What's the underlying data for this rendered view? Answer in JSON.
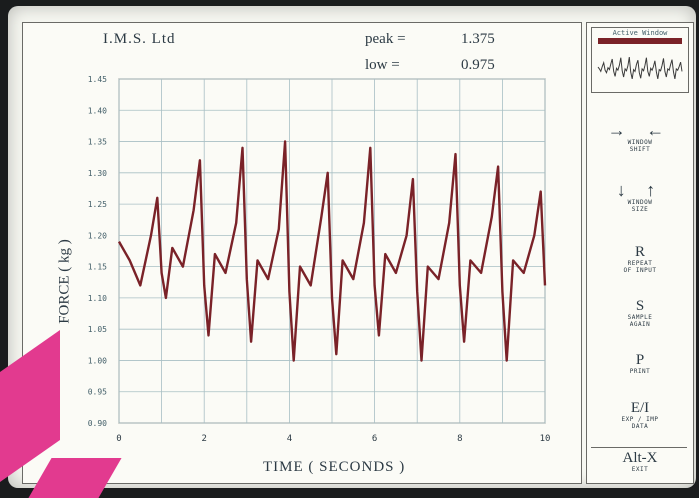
{
  "header": {
    "company": "I.M.S. Ltd",
    "peak_label": "peak =",
    "peak_value": "1.375",
    "low_label": "low =",
    "low_value": "0.975"
  },
  "axes": {
    "ylabel": "FORCE ( kg )",
    "xlabel": "TIME ( SECONDS )"
  },
  "chart_data": {
    "type": "line",
    "xlabel": "TIME ( SECONDS )",
    "ylabel": "FORCE ( kg )",
    "xlim": [
      0,
      10
    ],
    "ylim": [
      0.9,
      1.45
    ],
    "xticks": [
      "0",
      "2",
      "4",
      "6",
      "8",
      "10"
    ],
    "yticks": [
      "1.45",
      "1.40",
      "1.35",
      "1.30",
      "1.25",
      "1.20",
      "1.15",
      "1.10",
      "1.05",
      "1.00",
      "0.95",
      "0.90"
    ],
    "grid": true,
    "series": [
      {
        "color": "#7a2228",
        "x": [
          0,
          0.25,
          0.5,
          0.75,
          0.9,
          1.0,
          1.1,
          1.25,
          1.5,
          1.75,
          1.9,
          2.0,
          2.1,
          2.25,
          2.5,
          2.75,
          2.9,
          3.0,
          3.1,
          3.25,
          3.5,
          3.75,
          3.9,
          4.0,
          4.1,
          4.25,
          4.5,
          4.75,
          4.9,
          5.0,
          5.1,
          5.25,
          5.5,
          5.75,
          5.9,
          6.0,
          6.1,
          6.25,
          6.5,
          6.75,
          6.9,
          7.0,
          7.1,
          7.25,
          7.5,
          7.75,
          7.9,
          8.0,
          8.1,
          8.25,
          8.5,
          8.75,
          8.9,
          9.0,
          9.1,
          9.25,
          9.5,
          9.75,
          9.9,
          10.0
        ],
        "y": [
          1.19,
          1.16,
          1.12,
          1.2,
          1.26,
          1.14,
          1.1,
          1.18,
          1.15,
          1.24,
          1.32,
          1.12,
          1.04,
          1.17,
          1.14,
          1.22,
          1.34,
          1.13,
          1.03,
          1.16,
          1.13,
          1.21,
          1.35,
          1.11,
          1.0,
          1.15,
          1.12,
          1.23,
          1.3,
          1.1,
          1.01,
          1.16,
          1.13,
          1.22,
          1.34,
          1.12,
          1.04,
          1.17,
          1.14,
          1.2,
          1.29,
          1.11,
          1.0,
          1.15,
          1.13,
          1.22,
          1.33,
          1.12,
          1.03,
          1.16,
          1.14,
          1.23,
          1.31,
          1.11,
          1.0,
          1.16,
          1.14,
          1.2,
          1.27,
          1.12
        ]
      }
    ]
  },
  "sidebar": {
    "active_window_title": "Active Window",
    "items": [
      {
        "key": "→   ←",
        "label1": "WINDOW",
        "label2": "SHIFT"
      },
      {
        "key": "↓   ↑",
        "label1": "WINDOW",
        "label2": "SIZE"
      },
      {
        "key": "R",
        "label1": "REPEAT",
        "label2": "OF INPUT"
      },
      {
        "key": "S",
        "label1": "SAMPLE",
        "label2": "AGAIN"
      },
      {
        "key": "P",
        "label1": "PRINT",
        "label2": ""
      },
      {
        "key": "E/I",
        "label1": "EXP / IMP",
        "label2": "DATA"
      },
      {
        "key": "Alt-X",
        "label1": "EXIT",
        "label2": ""
      }
    ]
  }
}
